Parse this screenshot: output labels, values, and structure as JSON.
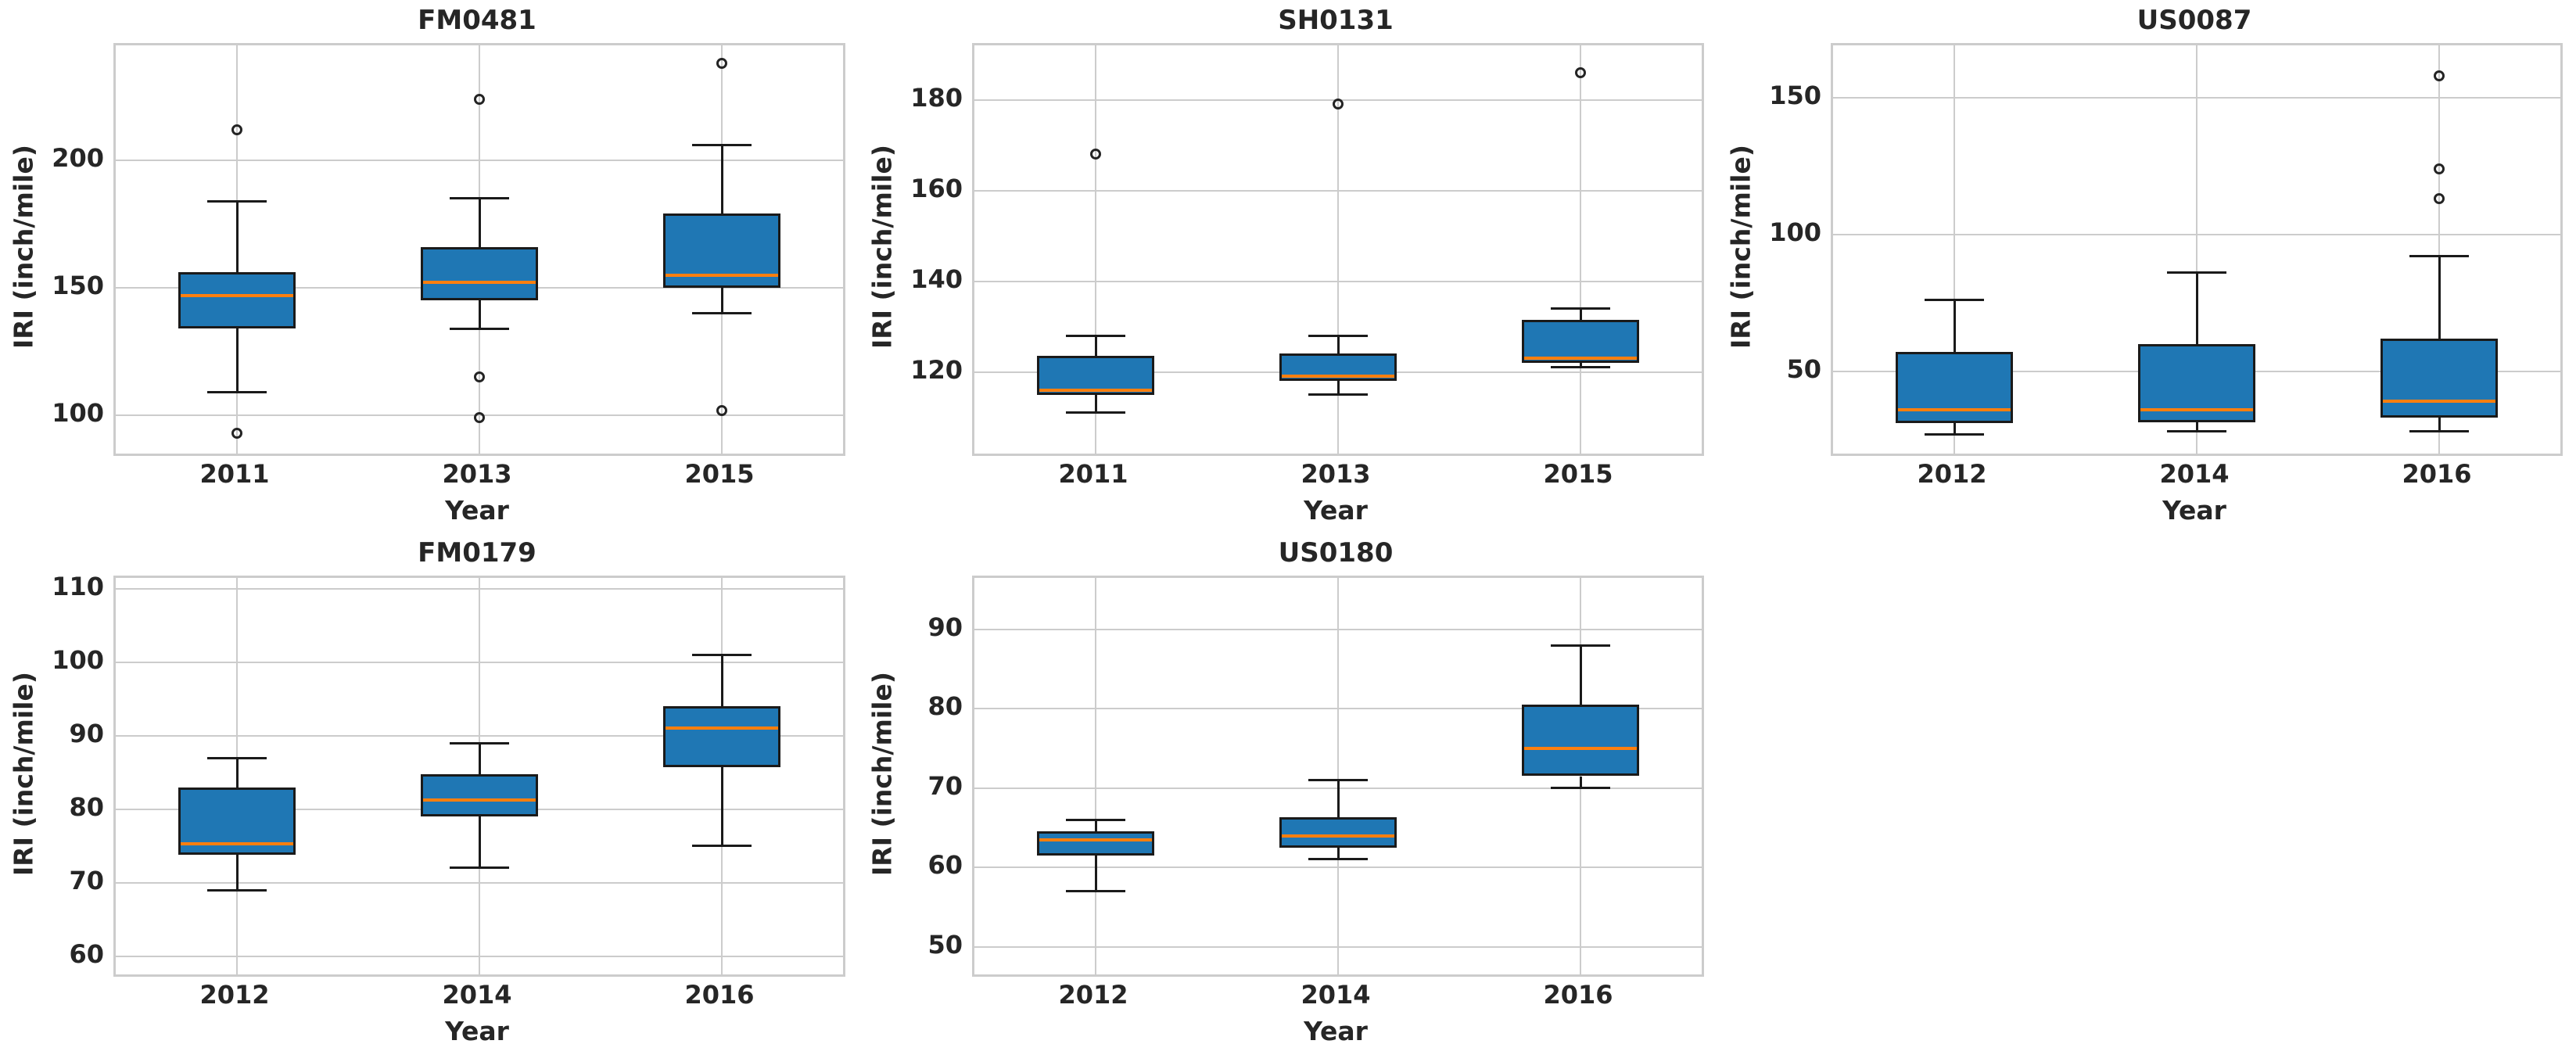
{
  "figure": {
    "background": "#ffffff"
  },
  "colors": {
    "box_fill": "#1f77b4",
    "median_line": "#ff7f0e",
    "box_edge": "#1a1a1a",
    "grid_line": "#cccccc",
    "spine": "#cccccc",
    "text": "#262626"
  },
  "chart_data": [
    {
      "type": "box",
      "title": "FM0481",
      "xlabel": "Year",
      "ylabel": "IRI (inch/mile)",
      "categories": [
        "2011",
        "2013",
        "2015"
      ],
      "ylim": [
        85,
        245
      ],
      "yticks": [
        100,
        150,
        200
      ],
      "grid": true,
      "boxes": [
        {
          "whislo": 109,
          "q1": 134,
          "med": 147,
          "q3": 156,
          "whishi": 184,
          "fliers": [
            212,
            93
          ]
        },
        {
          "whislo": 134,
          "q1": 145,
          "med": 152,
          "q3": 166,
          "whishi": 185,
          "fliers": [
            224,
            115,
            99
          ]
        },
        {
          "whislo": 140,
          "q1": 150,
          "med": 155,
          "q3": 179,
          "whishi": 206,
          "fliers": [
            238,
            102
          ]
        }
      ]
    },
    {
      "type": "box",
      "title": "SH0131",
      "xlabel": "Year",
      "ylabel": "IRI (inch/mile)",
      "categories": [
        "2011",
        "2013",
        "2015"
      ],
      "ylim": [
        102,
        192
      ],
      "yticks": [
        120,
        140,
        160,
        180
      ],
      "grid": true,
      "boxes": [
        {
          "whislo": 111,
          "q1": 115,
          "med": 116,
          "q3": 123.5,
          "whishi": 128,
          "fliers": [
            168
          ]
        },
        {
          "whislo": 115,
          "q1": 118,
          "med": 119,
          "q3": 124,
          "whishi": 128,
          "fliers": [
            179
          ]
        },
        {
          "whislo": 121,
          "q1": 122,
          "med": 123,
          "q3": 131.5,
          "whishi": 134,
          "fliers": [
            186
          ]
        }
      ]
    },
    {
      "type": "box",
      "title": "US0087",
      "xlabel": "Year",
      "ylabel": "IRI (inch/mile)",
      "categories": [
        "2012",
        "2014",
        "2016"
      ],
      "ylim": [
        20,
        169
      ],
      "yticks": [
        50,
        100,
        150
      ],
      "grid": true,
      "boxes": [
        {
          "whislo": 27,
          "q1": 31,
          "med": 36,
          "q3": 57,
          "whishi": 76,
          "fliers": []
        },
        {
          "whislo": 28,
          "q1": 31.5,
          "med": 36,
          "q3": 60,
          "whishi": 86,
          "fliers": []
        },
        {
          "whislo": 28,
          "q1": 33,
          "med": 39,
          "q3": 62,
          "whishi": 92,
          "fliers": [
            158,
            124,
            113
          ]
        }
      ]
    },
    {
      "type": "box",
      "title": "FM0179",
      "xlabel": "Year",
      "ylabel": "IRI (inch/mile)",
      "categories": [
        "2012",
        "2014",
        "2016"
      ],
      "ylim": [
        57.5,
        111.5
      ],
      "yticks": [
        60,
        70,
        80,
        90,
        100,
        110
      ],
      "grid": true,
      "boxes": [
        {
          "whislo": 69,
          "q1": 73.8,
          "med": 75.3,
          "q3": 83,
          "whishi": 87,
          "fliers": []
        },
        {
          "whislo": 72,
          "q1": 79,
          "med": 81.3,
          "q3": 84.8,
          "whishi": 89,
          "fliers": []
        },
        {
          "whislo": 75,
          "q1": 85.7,
          "med": 91,
          "q3": 94,
          "whishi": 101,
          "fliers": []
        }
      ]
    },
    {
      "type": "box",
      "title": "US0180",
      "xlabel": "Year",
      "ylabel": "IRI (inch/mile)",
      "categories": [
        "2012",
        "2014",
        "2016"
      ],
      "ylim": [
        46.5,
        96.5
      ],
      "yticks": [
        50,
        60,
        70,
        80,
        90
      ],
      "grid": true,
      "boxes": [
        {
          "whislo": 57,
          "q1": 61.5,
          "med": 63.5,
          "q3": 64.5,
          "whishi": 66,
          "fliers": []
        },
        {
          "whislo": 61,
          "q1": 62.5,
          "med": 64,
          "q3": 66.3,
          "whishi": 71,
          "fliers": []
        },
        {
          "whislo": 70,
          "q1": 71.5,
          "med": 75,
          "q3": 80.5,
          "whishi": 88,
          "fliers": []
        }
      ]
    }
  ]
}
